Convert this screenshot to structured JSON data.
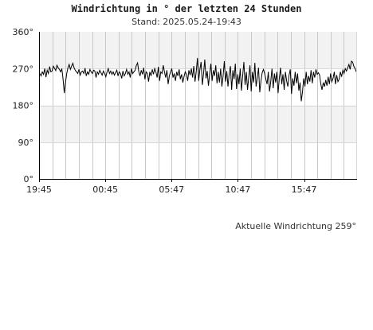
{
  "chart_data": {
    "type": "line",
    "title": "Windrichtung in ° der letzten 24 Stunden",
    "subtitle": "Stand: 2025.05.24-19:43",
    "ylim": [
      0,
      360
    ],
    "y_ticks": [
      "0°",
      "90°",
      "180°",
      "270°",
      "360°"
    ],
    "x_ticks": [
      "19:45",
      "00:45",
      "05:47",
      "10:47",
      "15:47"
    ],
    "x_range_hours": [
      0,
      24
    ],
    "x_tick_hours": [
      0,
      5,
      10,
      15,
      20
    ],
    "series": [
      {
        "values": [
          258,
          252,
          262,
          256,
          270,
          249,
          266,
          258,
          275,
          262,
          264,
          276,
          271,
          265,
          278,
          272,
          268,
          262,
          270,
          244,
          210,
          236,
          258,
          272,
          280,
          268,
          276,
          283,
          272,
          266,
          262,
          258,
          268,
          254,
          262,
          264,
          258,
          271,
          252,
          262,
          256,
          268,
          262,
          258,
          266,
          264,
          248,
          262,
          256,
          266,
          260,
          254,
          264,
          258,
          250,
          262,
          270,
          258,
          264,
          256,
          262,
          254,
          260,
          266,
          252,
          262,
          258,
          246,
          264,
          252,
          258,
          268,
          256,
          262,
          248,
          270,
          258,
          262,
          266,
          278,
          284,
          262,
          252,
          266,
          256,
          272,
          244,
          262,
          258,
          238,
          262,
          252,
          268,
          256,
          270,
          262,
          248,
          274,
          240,
          262,
          258,
          278,
          262,
          248,
          266,
          232,
          252,
          262,
          270,
          248,
          258,
          240,
          262,
          252,
          268,
          244,
          256,
          236,
          250,
          262,
          256,
          240,
          266,
          254,
          270,
          248,
          276,
          238,
          262,
          296,
          240,
          268,
          286,
          230,
          258,
          292,
          246,
          264,
          228,
          256,
          282,
          240,
          266,
          252,
          278,
          234,
          262,
          236,
          270,
          226,
          252,
          288,
          238,
          264,
          226,
          258,
          276,
          218,
          266,
          244,
          282,
          220,
          256,
          232,
          270,
          216,
          252,
          286,
          230,
          262,
          218,
          250,
          278,
          214,
          262,
          236,
          284,
          226,
          248,
          272,
          212,
          240,
          260,
          268,
          258,
          244,
          232,
          262,
          214,
          238,
          270,
          222,
          258,
          236,
          262,
          210,
          246,
          272,
          232,
          256,
          218,
          262,
          240,
          226,
          254,
          268,
          208,
          246,
          228,
          262,
          234,
          258,
          216,
          236,
          190,
          214,
          246,
          226,
          262,
          232,
          252,
          238,
          266,
          234,
          262,
          248,
          268,
          256,
          260,
          254,
          232,
          218,
          236,
          226,
          242,
          228,
          250,
          232,
          258,
          238,
          246,
          262,
          232,
          254,
          238,
          244,
          262,
          250,
          266,
          258,
          270,
          264,
          272,
          280,
          268,
          288,
          286,
          276,
          270,
          262
        ]
      }
    ],
    "grid": true
  },
  "footer": {
    "current_label": "Aktuelle Windrichtung 259°"
  }
}
